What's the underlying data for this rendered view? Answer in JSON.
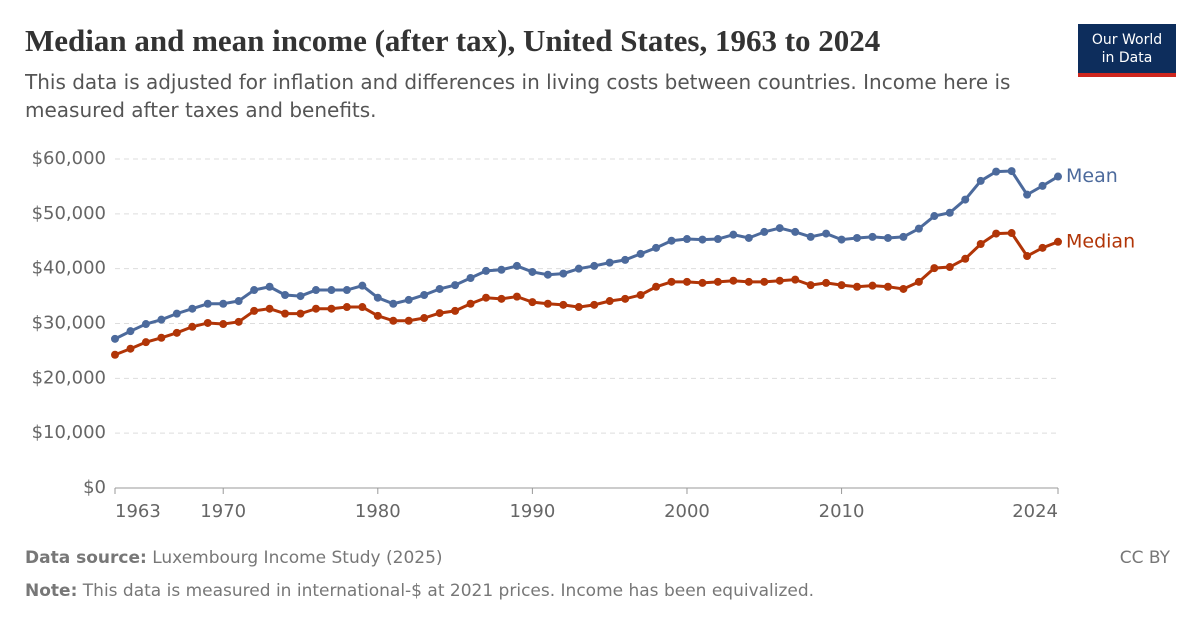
{
  "chart_data": {
    "type": "line",
    "title": "Median and mean income (after tax), United States, 1963 to 2024",
    "subtitle": "This data is adjusted for inflation and differences in living costs between countries. Income here is measured after taxes and benefits.",
    "logo": [
      "Our World",
      "in Data"
    ],
    "source_label": "Data source:",
    "source": "Luxembourg Income Study (2025)",
    "note_label": "Note:",
    "note": "This data is measured in international-$ at 2021 prices. Income has been equivalized.",
    "license": "CC BY",
    "x": [
      1963,
      1964,
      1965,
      1966,
      1967,
      1968,
      1969,
      1970,
      1971,
      1972,
      1973,
      1974,
      1975,
      1976,
      1977,
      1978,
      1979,
      1980,
      1981,
      1982,
      1983,
      1984,
      1985,
      1986,
      1987,
      1988,
      1989,
      1990,
      1991,
      1992,
      1993,
      1994,
      1995,
      1996,
      1997,
      1998,
      1999,
      2000,
      2001,
      2002,
      2003,
      2004,
      2005,
      2006,
      2007,
      2008,
      2009,
      2010,
      2011,
      2012,
      2013,
      2014,
      2015,
      2016,
      2017,
      2018,
      2019,
      2020,
      2021,
      2022,
      2023,
      2024
    ],
    "series": [
      {
        "name": "Mean",
        "color": "#4c6a9c",
        "values": [
          27200,
          28600,
          29900,
          30700,
          31800,
          32700,
          33600,
          33600,
          34100,
          36100,
          36700,
          35200,
          35000,
          36100,
          36100,
          36100,
          36900,
          34700,
          33600,
          34300,
          35200,
          36300,
          37000,
          38300,
          39600,
          39800,
          40500,
          39400,
          38900,
          39100,
          40000,
          40500,
          41100,
          41600,
          42700,
          43800,
          45100,
          45400,
          45300,
          45400,
          46200,
          45600,
          46700,
          47400,
          46700,
          45800,
          46400,
          45300,
          45600,
          45800,
          45600,
          45800,
          47300,
          49600,
          50200,
          52600,
          56000,
          57700,
          57800,
          53500,
          55100,
          56800
        ]
      },
      {
        "name": "Median",
        "color": "#b13507",
        "values": [
          24300,
          25400,
          26600,
          27400,
          28300,
          29400,
          30100,
          29900,
          30300,
          32300,
          32700,
          31800,
          31800,
          32700,
          32700,
          33000,
          33000,
          31400,
          30500,
          30500,
          31000,
          31900,
          32300,
          33600,
          34700,
          34500,
          34900,
          33900,
          33600,
          33400,
          33000,
          33400,
          34100,
          34500,
          35200,
          36700,
          37600,
          37600,
          37400,
          37600,
          37800,
          37600,
          37600,
          37800,
          38000,
          37000,
          37400,
          37000,
          36700,
          36900,
          36700,
          36300,
          37600,
          40100,
          40300,
          41800,
          44500,
          46400,
          46500,
          42300,
          43800,
          44900
        ]
      }
    ],
    "xlim": [
      1963,
      2024
    ],
    "xticks": [
      1963,
      1970,
      1980,
      1990,
      2000,
      2010,
      2024
    ],
    "ylim": [
      0,
      60000
    ],
    "yticks": [
      {
        "value": 0,
        "label": "$0"
      },
      {
        "value": 10000,
        "label": "$10,000"
      },
      {
        "value": 20000,
        "label": "$20,000"
      },
      {
        "value": 30000,
        "label": "$30,000"
      },
      {
        "value": 40000,
        "label": "$40,000"
      },
      {
        "value": 50000,
        "label": "$50,000"
      },
      {
        "value": 60000,
        "label": "$60,000"
      }
    ],
    "grid": true
  }
}
